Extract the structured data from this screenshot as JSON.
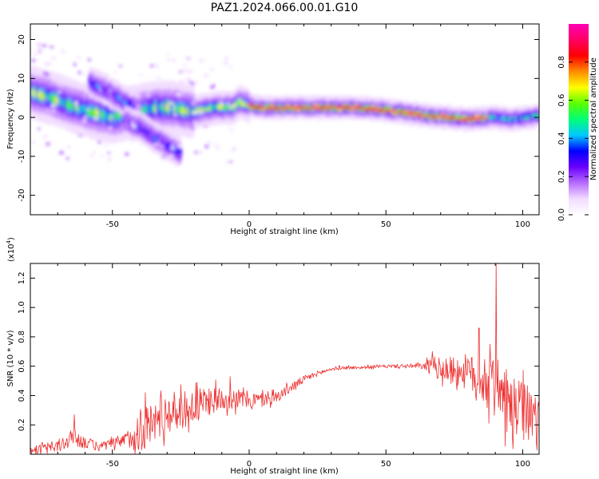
{
  "title": "PAZ1.2024.066.00.01.G10",
  "chart_data": [
    {
      "type": "heatmap",
      "xlabel": "Height of straight line (km)",
      "ylabel": "Frequency (Hz)",
      "xlim": [
        -80,
        106
      ],
      "ylim": [
        -25,
        24
      ],
      "xticks": [
        -50,
        0,
        50,
        100
      ],
      "yticks": [
        -20,
        -10,
        0,
        10,
        20
      ],
      "colorbar": {
        "label": "Normalized spectral amplitude",
        "range": [
          0,
          1
        ],
        "ticks": [
          "0.0",
          "0.2",
          "0.4",
          "0.6",
          "0.8"
        ],
        "tick_values": [
          0,
          0.2,
          0.4,
          0.6,
          0.8
        ],
        "colormap": [
          "#ffffff",
          "#f2dbff",
          "#b76cff",
          "#6a00ff",
          "#0000ff",
          "#00c8ff",
          "#00ff78",
          "#5aff00",
          "#ffff00",
          "#ff8c00",
          "#ff0000",
          "#ff0064",
          "#ff00b4"
        ]
      },
      "ridges": [
        {
          "name": "main",
          "points": [
            [
              -80,
              6.5
            ],
            [
              -72,
              5.0
            ],
            [
              -65,
              3.0
            ],
            [
              -58,
              1.5
            ],
            [
              -50,
              0.0
            ],
            [
              -42,
              1.5
            ],
            [
              -35,
              2.5
            ],
            [
              -28,
              2.5
            ],
            [
              -20,
              1.5
            ],
            [
              -12,
              2.5
            ],
            [
              -6,
              2.5
            ],
            [
              -3,
              4.0
            ],
            [
              0,
              3.0
            ],
            [
              5,
              2.5
            ],
            [
              20,
              2.5
            ],
            [
              40,
              2.5
            ],
            [
              55,
              1.5
            ],
            [
              65,
              0.5
            ],
            [
              80,
              -0.5
            ],
            [
              90,
              0.0
            ],
            [
              96,
              -0.5
            ],
            [
              106,
              0.5
            ]
          ]
        },
        {
          "name": "branch-upper",
          "points": [
            [
              -58,
              9.0
            ],
            [
              -52,
              7.0
            ],
            [
              -45,
              4.0
            ],
            [
              -40,
              2.0
            ]
          ]
        },
        {
          "name": "branch-lower",
          "points": [
            [
              -45,
              -1.0
            ],
            [
              -40,
              -2.5
            ],
            [
              -35,
              -5.0
            ],
            [
              -30,
              -7.0
            ],
            [
              -25,
              -9.0
            ]
          ]
        }
      ]
    },
    {
      "type": "line",
      "xlabel": "Height of straight line (km)",
      "ylabel": "SNR (10 * v/v)",
      "yexp": "(x10",
      "yexp_power": "4",
      "yexp_close": ")",
      "xlim": [
        -80,
        106
      ],
      "ylim": [
        0,
        1.3
      ],
      "xticks": [
        -50,
        0,
        50,
        100
      ],
      "yticks": [
        0.2,
        0.4,
        0.6,
        0.8,
        1.0,
        1.2
      ],
      "ytick_labels": [
        "0.2",
        "0.4",
        "0.6",
        "0.8",
        "1.0",
        "1.2"
      ],
      "color": "#ee3030",
      "envelope": [
        [
          -80,
          0.03
        ],
        [
          -70,
          0.05
        ],
        [
          -64,
          0.12
        ],
        [
          -60,
          0.08
        ],
        [
          -55,
          0.05
        ],
        [
          -50,
          0.07
        ],
        [
          -45,
          0.1
        ],
        [
          -40,
          0.16
        ],
        [
          -35,
          0.22
        ],
        [
          -30,
          0.28
        ],
        [
          -25,
          0.3
        ],
        [
          -20,
          0.32
        ],
        [
          -15,
          0.36
        ],
        [
          -10,
          0.38
        ],
        [
          -5,
          0.38
        ],
        [
          0,
          0.37
        ],
        [
          5,
          0.37
        ],
        [
          10,
          0.39
        ],
        [
          15,
          0.45
        ],
        [
          20,
          0.51
        ],
        [
          25,
          0.55
        ],
        [
          30,
          0.58
        ],
        [
          35,
          0.59
        ],
        [
          40,
          0.59
        ],
        [
          50,
          0.6
        ],
        [
          60,
          0.6
        ],
        [
          65,
          0.6
        ],
        [
          70,
          0.58
        ],
        [
          75,
          0.57
        ],
        [
          80,
          0.56
        ],
        [
          85,
          0.5
        ],
        [
          88,
          0.45
        ],
        [
          90,
          0.55
        ],
        [
          93,
          0.35
        ],
        [
          96,
          0.3
        ],
        [
          100,
          0.3
        ],
        [
          106,
          0.22
        ]
      ],
      "noise_amplitude": [
        [
          -80,
          0.02
        ],
        [
          -65,
          0.06
        ],
        [
          -55,
          0.03
        ],
        [
          -45,
          0.05
        ],
        [
          -40,
          0.15
        ],
        [
          -30,
          0.14
        ],
        [
          -20,
          0.12
        ],
        [
          -10,
          0.08
        ],
        [
          0,
          0.06
        ],
        [
          10,
          0.04
        ],
        [
          20,
          0.025
        ],
        [
          30,
          0.012
        ],
        [
          50,
          0.01
        ],
        [
          64,
          0.02
        ],
        [
          66,
          0.06
        ],
        [
          75,
          0.1
        ],
        [
          85,
          0.15
        ],
        [
          88,
          0.18
        ],
        [
          90,
          0.2
        ],
        [
          95,
          0.22
        ],
        [
          100,
          0.2
        ],
        [
          106,
          0.18
        ]
      ],
      "peaks": [
        [
          -64,
          0.27
        ],
        [
          -38,
          0.42
        ],
        [
          -19,
          0.49
        ],
        [
          -7,
          0.53
        ],
        [
          67,
          0.7
        ],
        [
          84,
          0.86
        ],
        [
          88,
          0.75
        ],
        [
          90.3,
          1.3
        ]
      ]
    }
  ]
}
